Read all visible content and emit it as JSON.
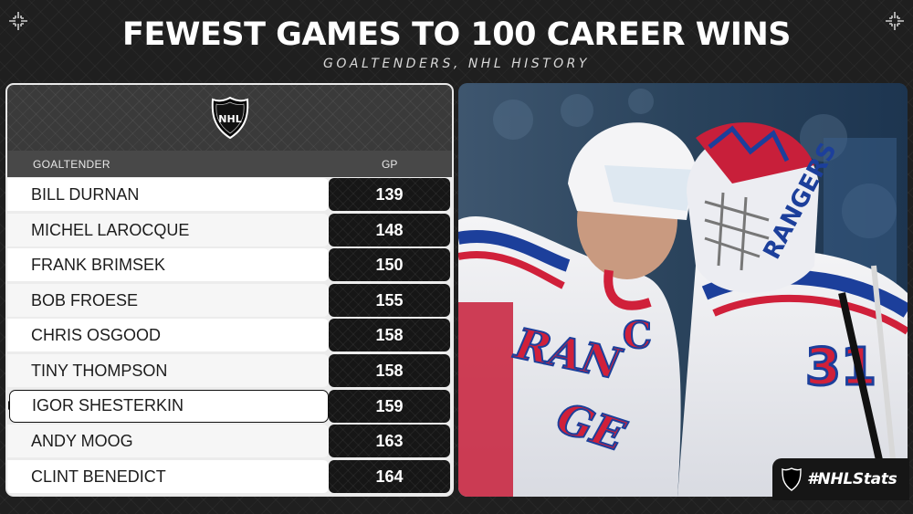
{
  "title": "FEWEST GAMES TO 100 CAREER WINS",
  "subtitle": "GOALTENDERS, NHL HISTORY",
  "logo_text": "NHL",
  "table": {
    "headers": {
      "name": "GOALTENDER",
      "gp": "GP"
    },
    "rows": [
      {
        "name": "BILL DURNAN",
        "gp": "139"
      },
      {
        "name": "MICHEL LAROCQUE",
        "gp": "148"
      },
      {
        "name": "FRANK BRIMSEK",
        "gp": "150"
      },
      {
        "name": "BOB FROESE",
        "gp": "155"
      },
      {
        "name": "CHRIS OSGOOD",
        "gp": "158"
      },
      {
        "name": "TINY THOMPSON",
        "gp": "158"
      },
      {
        "name": "IGOR SHESTERKIN",
        "gp": "159",
        "highlighted": true
      },
      {
        "name": "ANDY MOOG",
        "gp": "163"
      },
      {
        "name": "CLINT BENEDICT",
        "gp": "164"
      }
    ]
  },
  "photo": {
    "jersey_text": "RANGERS",
    "goalie_number": "31",
    "captain_letter": "C"
  },
  "hashtag": "#NHLStats",
  "colors": {
    "rangers_blue": "#1c3f9b",
    "rangers_red": "#d0203a",
    "panel_dark": "#161616"
  }
}
